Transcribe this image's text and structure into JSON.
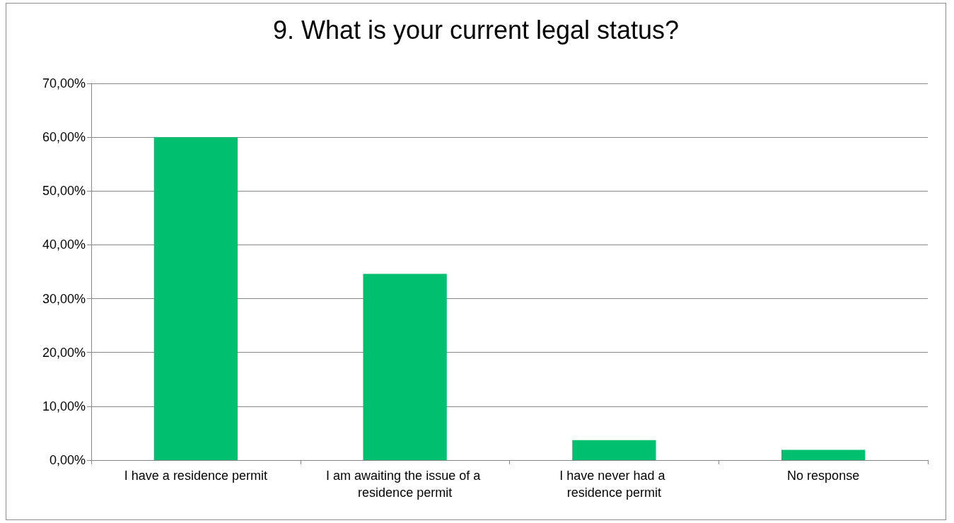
{
  "chart_data": {
    "type": "bar",
    "title": "9. What is your current legal status?",
    "categories": [
      "I have a residence permit",
      "I am awaiting the issue of a residence permit",
      "I have never had a residence permit",
      "No response"
    ],
    "values": [
      60.0,
      34.6,
      3.7,
      1.9
    ],
    "color": "#00bf6f",
    "ylim": [
      0,
      70
    ],
    "yticks": [
      {
        "value": 0,
        "label": "0,00%"
      },
      {
        "value": 10,
        "label": "10,00%"
      },
      {
        "value": 20,
        "label": "20,00%"
      },
      {
        "value": 30,
        "label": "30,00%"
      },
      {
        "value": 40,
        "label": "40,00%"
      },
      {
        "value": 50,
        "label": "50,00%"
      },
      {
        "value": 60,
        "label": "60,00%"
      },
      {
        "value": 70,
        "label": "70,00%"
      }
    ],
    "grid": "y"
  }
}
